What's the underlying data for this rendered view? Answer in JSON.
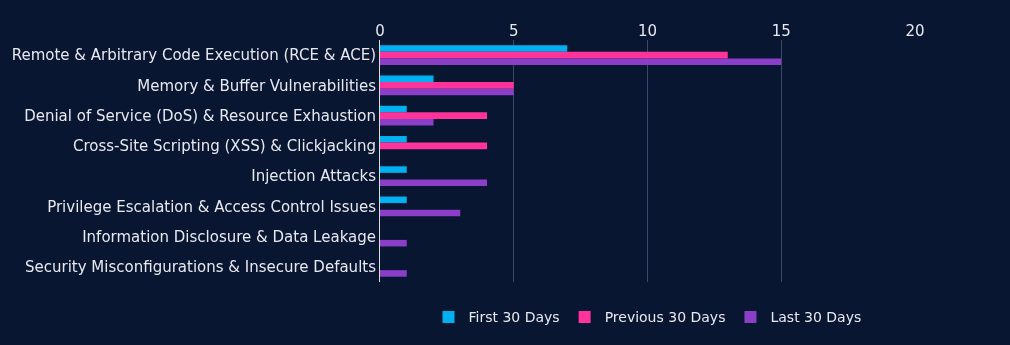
{
  "chart_data": {
    "type": "bar",
    "orientation": "horizontal",
    "categories": [
      "Remote & Arbitrary Code Execution (RCE & ACE)",
      "Memory & Buffer Vulnerabilities",
      "Denial of Service (DoS) & Resource Exhaustion",
      "Cross-Site Scripting (XSS) & Clickjacking",
      "Injection Attacks",
      "Privilege Escalation & Access Control Issues",
      "Information Disclosure & Data Leakage",
      "Security Misconfigurations & Insecure Defaults"
    ],
    "series": [
      {
        "name": "First 30 Days",
        "color": "#00b0f0",
        "values": [
          7,
          2,
          1,
          1,
          1,
          1,
          null,
          null
        ]
      },
      {
        "name": "Previous 30 Days",
        "color": "#ff3399",
        "values": [
          13,
          5,
          4,
          4,
          null,
          null,
          null,
          null
        ]
      },
      {
        "name": "Last 30 Days",
        "color": "#8b3fc8",
        "values": [
          15,
          5,
          2,
          null,
          4,
          3,
          1,
          1
        ]
      }
    ],
    "xlim": [
      0,
      20
    ],
    "xticks": [
      0,
      5,
      10,
      15,
      20
    ],
    "grid": "x",
    "legend": "bottom"
  }
}
